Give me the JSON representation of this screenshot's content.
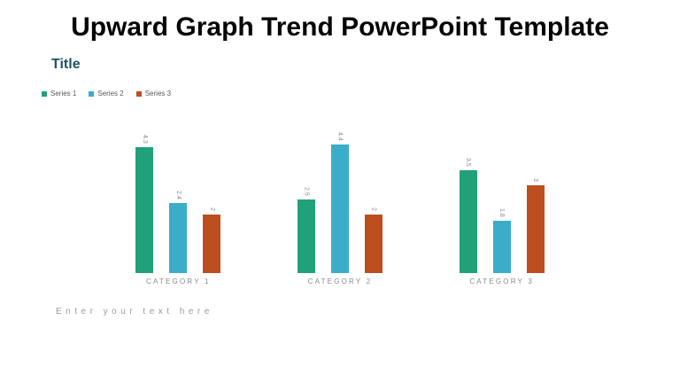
{
  "slide": {
    "main_title": "Upward Graph Trend PowerPoint Template",
    "section_title": "Title",
    "placeholder_text": "Enter your text here"
  },
  "legend": {
    "position": "top-left",
    "items": [
      {
        "label": "Series 1",
        "color": "#21a179"
      },
      {
        "label": "Series 2",
        "color": "#3badc9"
      },
      {
        "label": "Series 3",
        "color": "#bc4e20"
      }
    ]
  },
  "chart_data": {
    "type": "bar",
    "title": "",
    "xlabel": "",
    "ylabel": "",
    "categories": [
      "CATEGORY 1",
      "CATEGORY 2",
      "CATEGORY 3"
    ],
    "series": [
      {
        "name": "Series 1",
        "color": "#21a179",
        "values": [
          4.3,
          2.5,
          3.5
        ]
      },
      {
        "name": "Series 2",
        "color": "#3badc9",
        "values": [
          2.4,
          4.4,
          1.8
        ]
      },
      {
        "name": "Series 3",
        "color": "#bc4e20",
        "values": [
          2,
          2,
          3
        ]
      }
    ],
    "ylim": [
      0,
      5
    ],
    "grid": false,
    "axes_visible": false,
    "data_labels_rotated": true,
    "legend_position": "top-left",
    "label_color": "#8a8a8a"
  }
}
